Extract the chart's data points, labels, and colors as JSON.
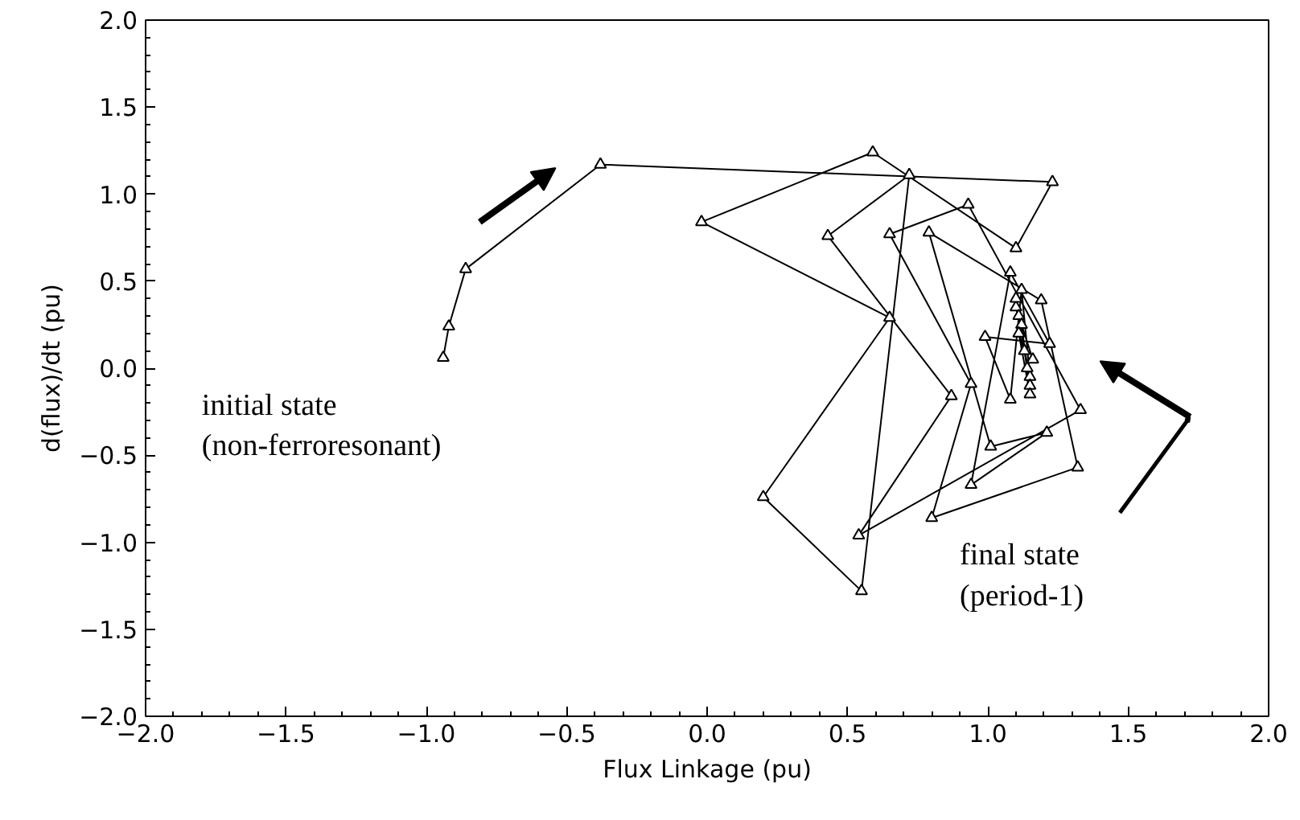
{
  "chart_data": {
    "type": "line",
    "xlabel": "Flux Linkage (pu)",
    "ylabel": "d(flux)/dt (pu)",
    "x": [
      -0.94,
      -0.92,
      -0.86,
      -0.38,
      1.23,
      1.1,
      0.59,
      -0.02,
      0.65,
      0.2,
      0.55,
      0.72,
      0.43,
      0.87,
      0.54,
      1.33,
      0.93,
      0.65,
      0.94,
      0.8,
      1.32,
      1.19,
      0.79,
      1.01,
      1.21,
      0.94,
      1.08,
      1.22,
      0.99,
      1.08,
      1.12,
      1.15,
      1.1,
      1.16,
      1.11,
      1.15,
      1.1,
      1.14,
      1.12,
      1.15,
      1.11,
      1.13
    ],
    "series": [
      {
        "color": "#000000",
        "values": [
          0.06,
          0.24,
          0.57,
          1.17,
          1.07,
          0.69,
          1.24,
          0.84,
          0.29,
          -0.74,
          -1.28,
          1.11,
          0.76,
          -0.16,
          -0.96,
          -0.24,
          0.94,
          0.77,
          -0.09,
          -0.86,
          -0.57,
          0.39,
          0.78,
          -0.45,
          -0.37,
          -0.67,
          0.55,
          0.14,
          0.18,
          -0.18,
          0.45,
          -0.05,
          0.35,
          0.05,
          0.3,
          -0.1,
          0.4,
          0.0,
          0.25,
          -0.15,
          0.2,
          0.1
        ]
      }
    ],
    "marker": "triangle",
    "line_style": "solid",
    "grid": false,
    "xlim": [
      -2.0,
      2.0
    ],
    "ylim": [
      -2.0,
      2.0
    ],
    "xticks": [
      {
        "value": -2.0,
        "label": "−2.0"
      },
      {
        "value": -1.5,
        "label": "−1.5"
      },
      {
        "value": -1.0,
        "label": "−1.0"
      },
      {
        "value": -0.5,
        "label": "−0.5"
      },
      {
        "value": 0.0,
        "label": "0.0"
      },
      {
        "value": 0.5,
        "label": "0.5"
      },
      {
        "value": 1.0,
        "label": "1.0"
      },
      {
        "value": 1.5,
        "label": "1.5"
      },
      {
        "value": 2.0,
        "label": "2.0"
      }
    ],
    "yticks": [
      {
        "value": -2.0,
        "label": "−2.0"
      },
      {
        "value": -1.5,
        "label": "−1.5"
      },
      {
        "value": -1.0,
        "label": "−1.0"
      },
      {
        "value": -0.5,
        "label": "−0.5"
      },
      {
        "value": 0.0,
        "label": "0.0"
      },
      {
        "value": 0.5,
        "label": "0.5"
      },
      {
        "value": 1.0,
        "label": "1.0"
      },
      {
        "value": 1.5,
        "label": "1.5"
      },
      {
        "value": 2.0,
        "label": "2.0"
      }
    ],
    "annotations": [
      "initial state\n(non-ferroresonant)",
      "final state\n(period-1)"
    ]
  }
}
